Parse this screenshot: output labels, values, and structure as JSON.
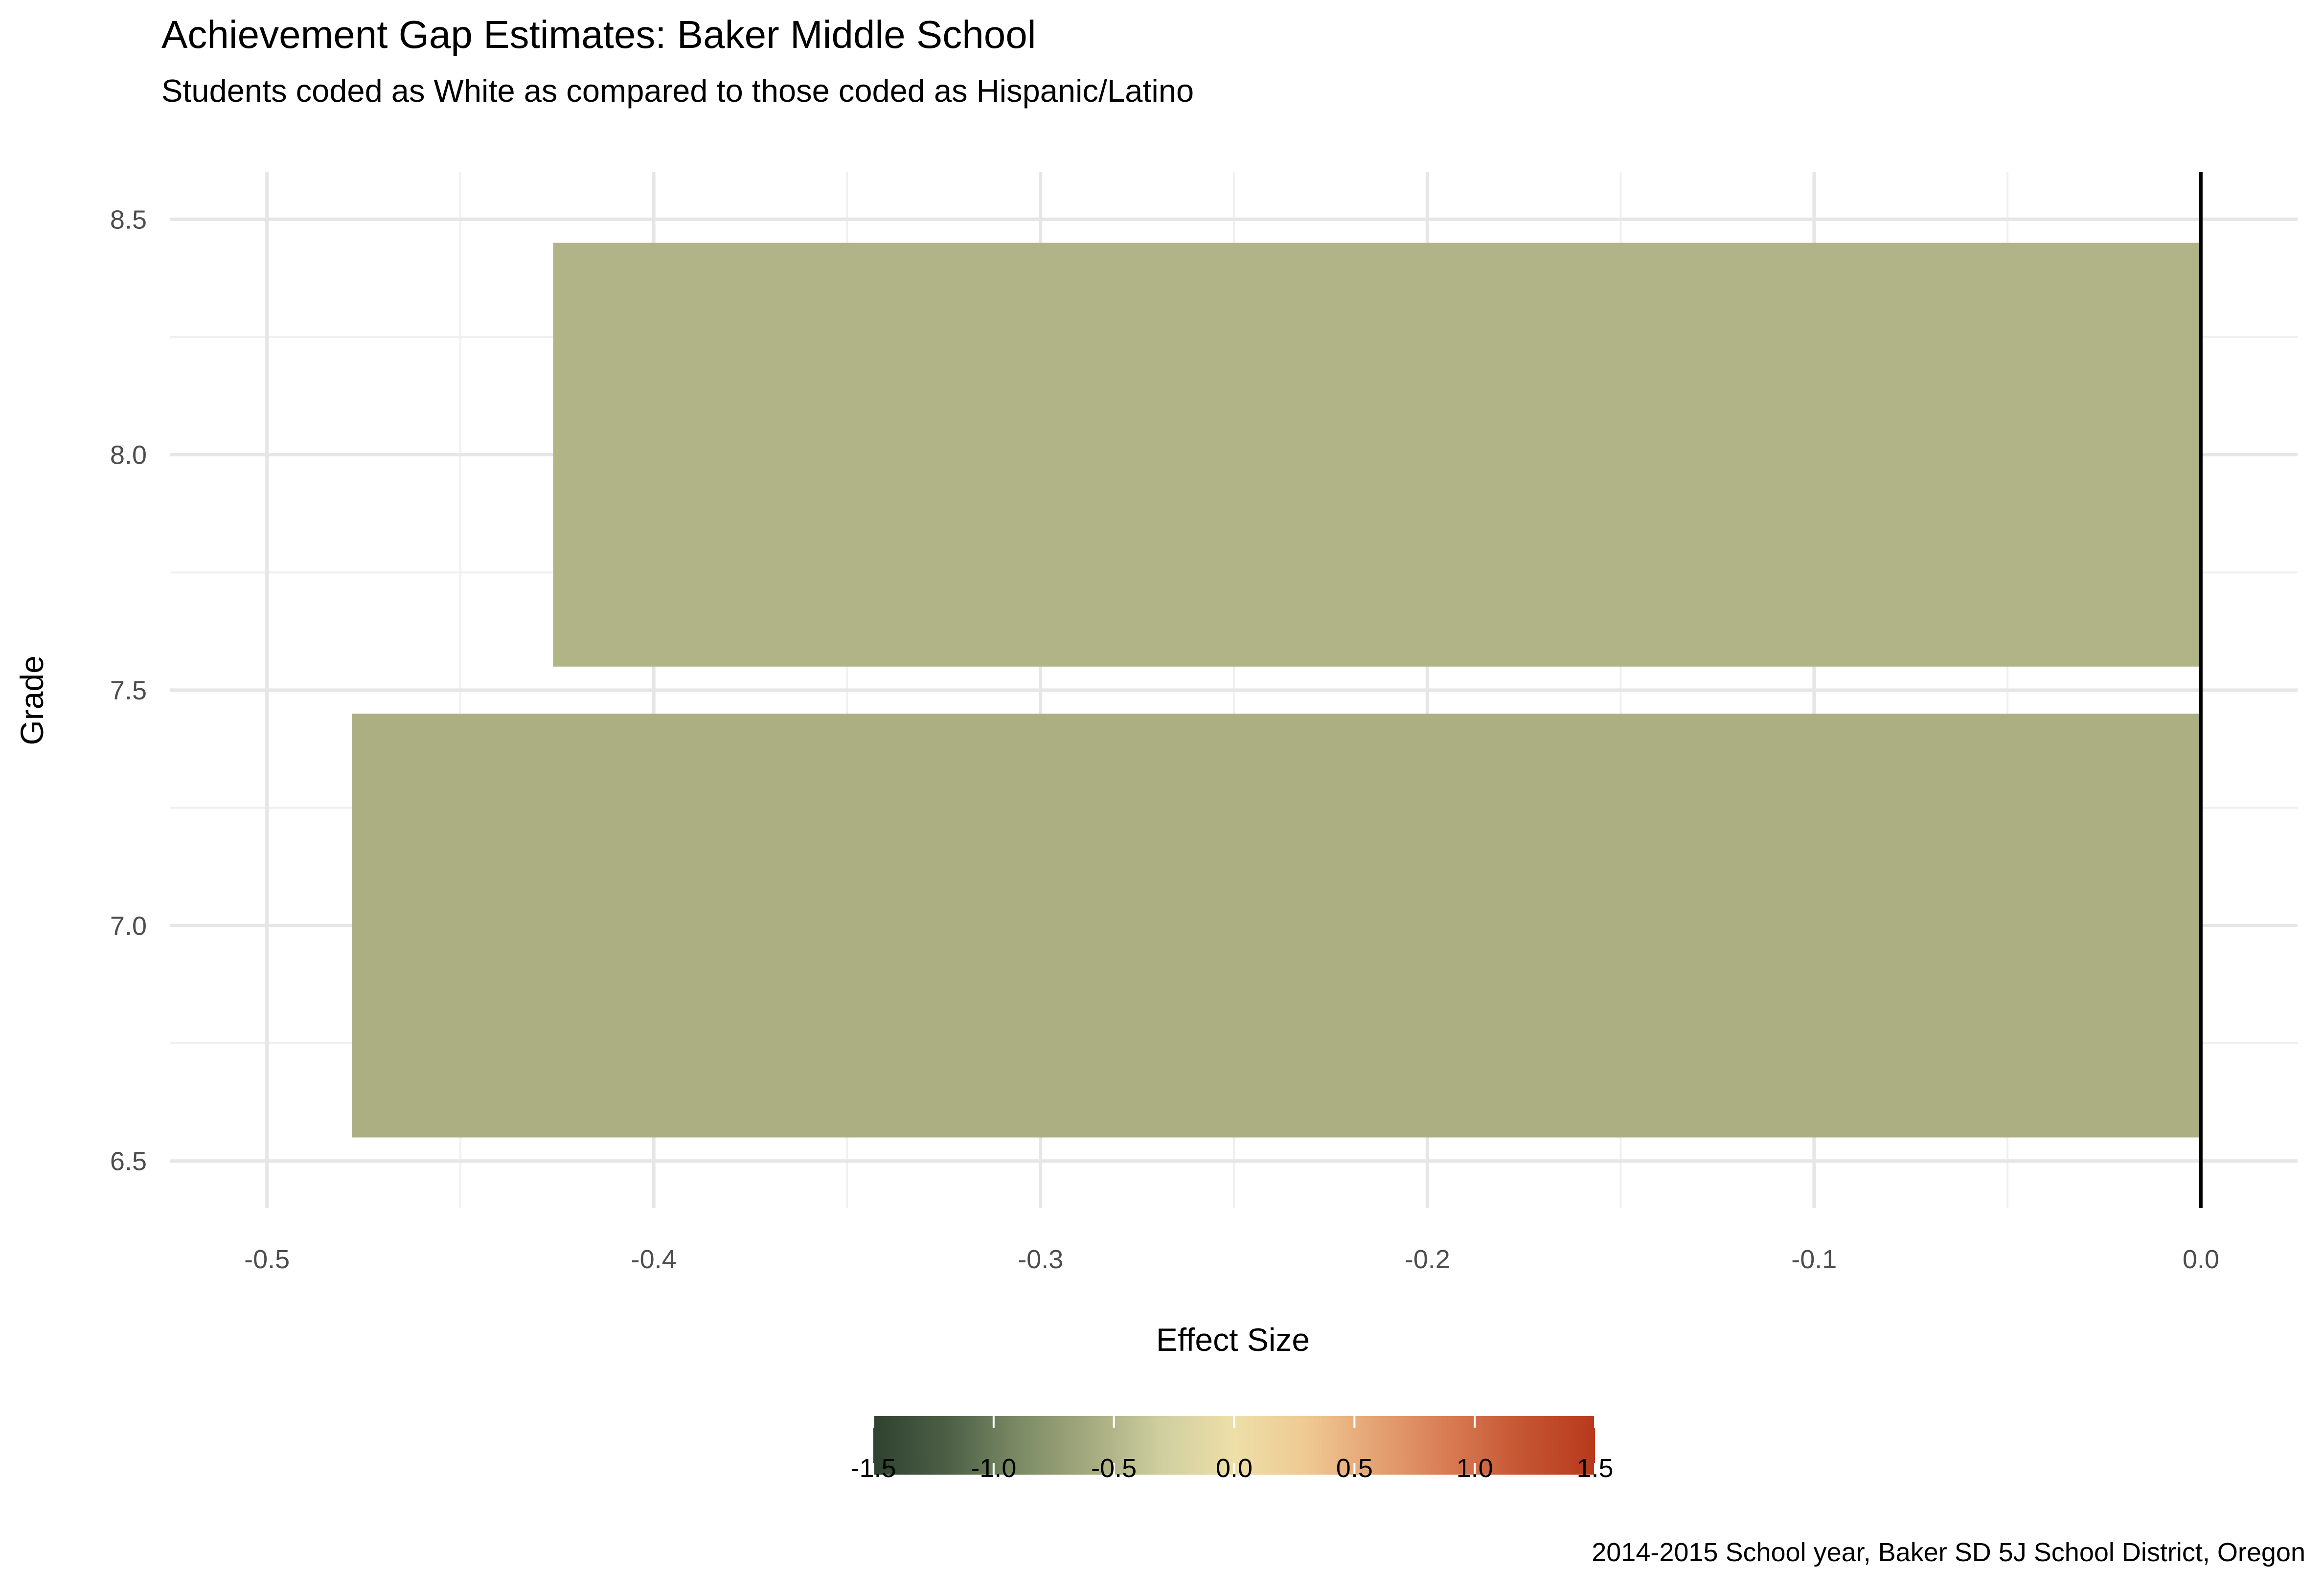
{
  "chart_data": {
    "type": "bar",
    "orientation": "horizontal",
    "title": "Achievement Gap Estimates: Baker Middle School",
    "subtitle": "Students coded as White as compared to those coded as Hispanic/Latino",
    "caption": "2014-2015 School year, Baker SD 5J School District, Oregon",
    "xlabel": "Effect Size",
    "ylabel": "Grade",
    "xlim": [
      -0.5,
      0.0
    ],
    "ylim": [
      6.5,
      8.5
    ],
    "x_ticks": [
      -0.5,
      -0.4,
      -0.3,
      -0.2,
      -0.1,
      0.0
    ],
    "x_tick_labels": [
      "-0.5",
      "-0.4",
      "-0.3",
      "-0.2",
      "-0.1",
      "0.0"
    ],
    "y_ticks": [
      6.5,
      7.0,
      7.5,
      8.0,
      8.5
    ],
    "y_tick_labels": [
      "6.5",
      "7.0",
      "7.5",
      "8.0",
      "8.5"
    ],
    "grid": true,
    "reference_line": 0.0,
    "bars": [
      {
        "grade": 7,
        "value": -0.478,
        "color": "#acaf82"
      },
      {
        "grade": 8,
        "value": -0.426,
        "color": "#b1b487"
      }
    ],
    "legend": {
      "type": "colorbar",
      "position": "bottom",
      "range": [
        -1.5,
        1.5
      ],
      "ticks": [
        -1.5,
        -1.0,
        -0.5,
        0.0,
        0.5,
        1.0,
        1.5
      ],
      "tick_labels": [
        "-1.5",
        "-1.0",
        "-0.5",
        "0.0",
        "0.5",
        "1.0",
        "1.5"
      ],
      "palette": [
        "#2e4230",
        "#4b5e45",
        "#7a8a64",
        "#a5aa7f",
        "#cfcfa0",
        "#eedfa8",
        "#efc992",
        "#e4a172",
        "#d77a52",
        "#c55532",
        "#b8391c"
      ]
    }
  }
}
